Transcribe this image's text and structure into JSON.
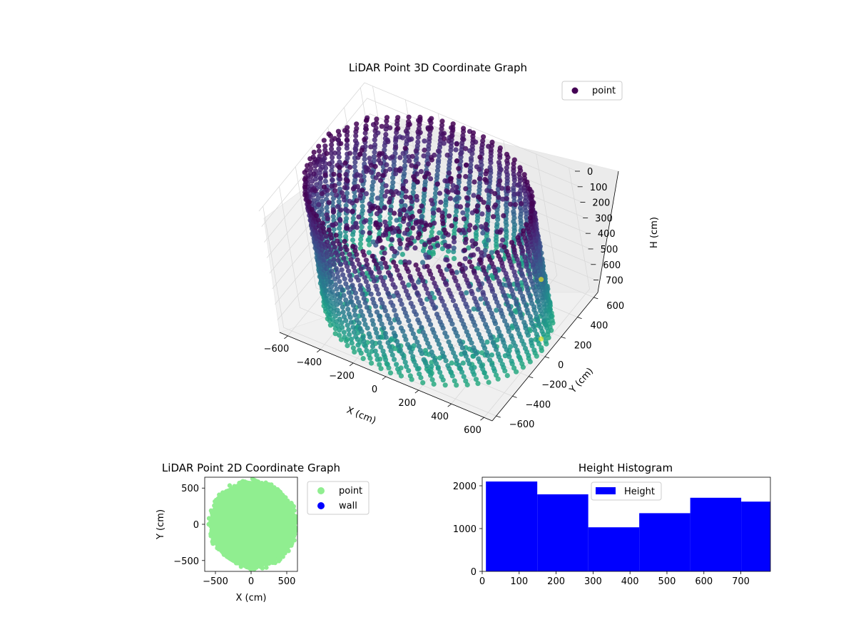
{
  "colors": {
    "viridis": [
      "#440154",
      "#482878",
      "#3e4a89",
      "#31688e",
      "#26828e",
      "#1f9e89",
      "#35b779",
      "#6ece58",
      "#b5de2b",
      "#fde725"
    ],
    "pane": "#f2f2f2",
    "grid": "#d9d9d9",
    "point_2d": "#90ee90",
    "wall_2d": "#0000ff",
    "histogram": "#0000ff"
  },
  "chart_data": [
    {
      "type": "scatter3d",
      "title": "LiDAR Point 3D Coordinate Graph",
      "xlabel": "X (cm)",
      "ylabel": "Y (cm)",
      "zlabel": "H (cm)",
      "xlim": [
        -650,
        650
      ],
      "ylim": [
        -650,
        650
      ],
      "zlim": [
        780,
        0
      ],
      "x_ticks": [
        -600,
        -400,
        -200,
        0,
        200,
        400,
        600
      ],
      "y_ticks": [
        -600,
        -400,
        -200,
        0,
        200,
        400,
        600
      ],
      "z_ticks": [
        0,
        100,
        200,
        300,
        400,
        500,
        600,
        700
      ],
      "colormap": "viridis",
      "grid": true,
      "legend": {
        "placement": "upper-right",
        "entries": [
          "point"
        ]
      },
      "series": [
        {
          "name": "point",
          "description": "cylindrical room wall of radius ~620 cm sampled in vertical scan arcs from H 0 to 780 cm, plus a dense ceiling cluster near H 0 and a floor ring near H 780"
        }
      ]
    },
    {
      "type": "scatter",
      "title": "LiDAR Point 2D Coordinate Graph",
      "xlabel": "X (cm)",
      "ylabel": "Y (cm)",
      "xlim": [
        -650,
        650
      ],
      "ylim": [
        -650,
        650
      ],
      "x_ticks": [
        -500,
        0,
        500
      ],
      "y_ticks": [
        -500,
        0,
        500
      ],
      "legend": {
        "placement": "outside-right",
        "entries": [
          "point",
          "wall"
        ]
      },
      "series": [
        {
          "name": "point",
          "description": "filled disk of radius ~600 cm centred near (20, 0)"
        },
        {
          "name": "wall",
          "description": "no visible points"
        }
      ]
    },
    {
      "type": "bar",
      "title": "Height Histogram",
      "xlabel": "",
      "ylabel": "",
      "xlim": [
        0,
        780
      ],
      "ylim": [
        0,
        2200
      ],
      "x_ticks": [
        0,
        100,
        200,
        300,
        400,
        500,
        600,
        700
      ],
      "y_ticks": [
        0,
        1000,
        2000
      ],
      "legend": {
        "placement": "upper-center",
        "entries": [
          "Height"
        ]
      },
      "bins": [
        {
          "start": 10,
          "end": 149,
          "count": 2100
        },
        {
          "start": 149,
          "end": 287,
          "count": 1800
        },
        {
          "start": 287,
          "end": 425,
          "count": 1030
        },
        {
          "start": 425,
          "end": 563,
          "count": 1360
        },
        {
          "start": 563,
          "end": 701,
          "count": 1720
        },
        {
          "start": 701,
          "end": 780,
          "count": 1630
        }
      ]
    }
  ]
}
